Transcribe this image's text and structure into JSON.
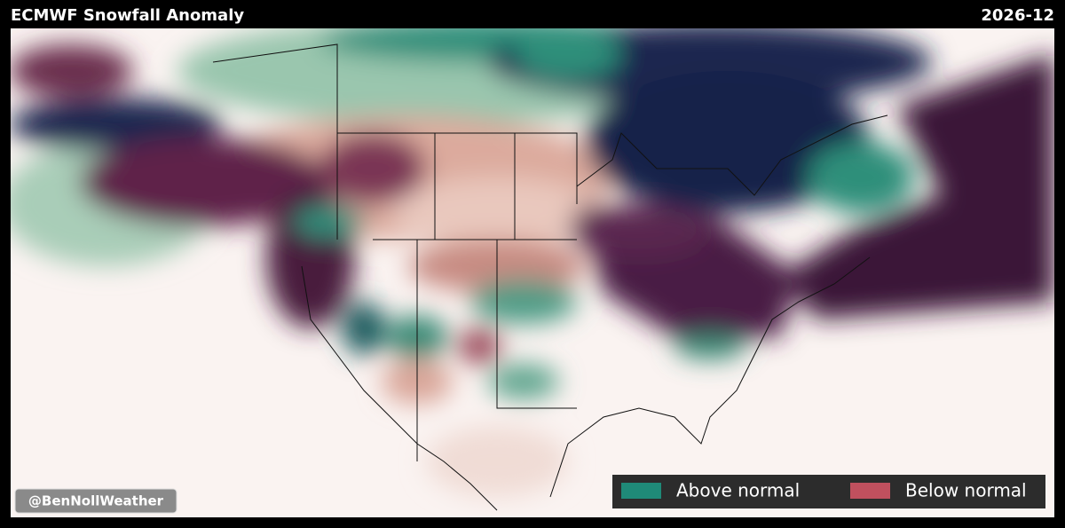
{
  "header": {
    "title": "ECMWF Snowfall Anomaly",
    "date": "2026-12"
  },
  "legend": [
    {
      "label": "Above normal",
      "color": "#1f8a78"
    },
    {
      "label": "Below normal",
      "color": "#c0505e"
    }
  ],
  "watermark": "@BenNollWeather"
}
